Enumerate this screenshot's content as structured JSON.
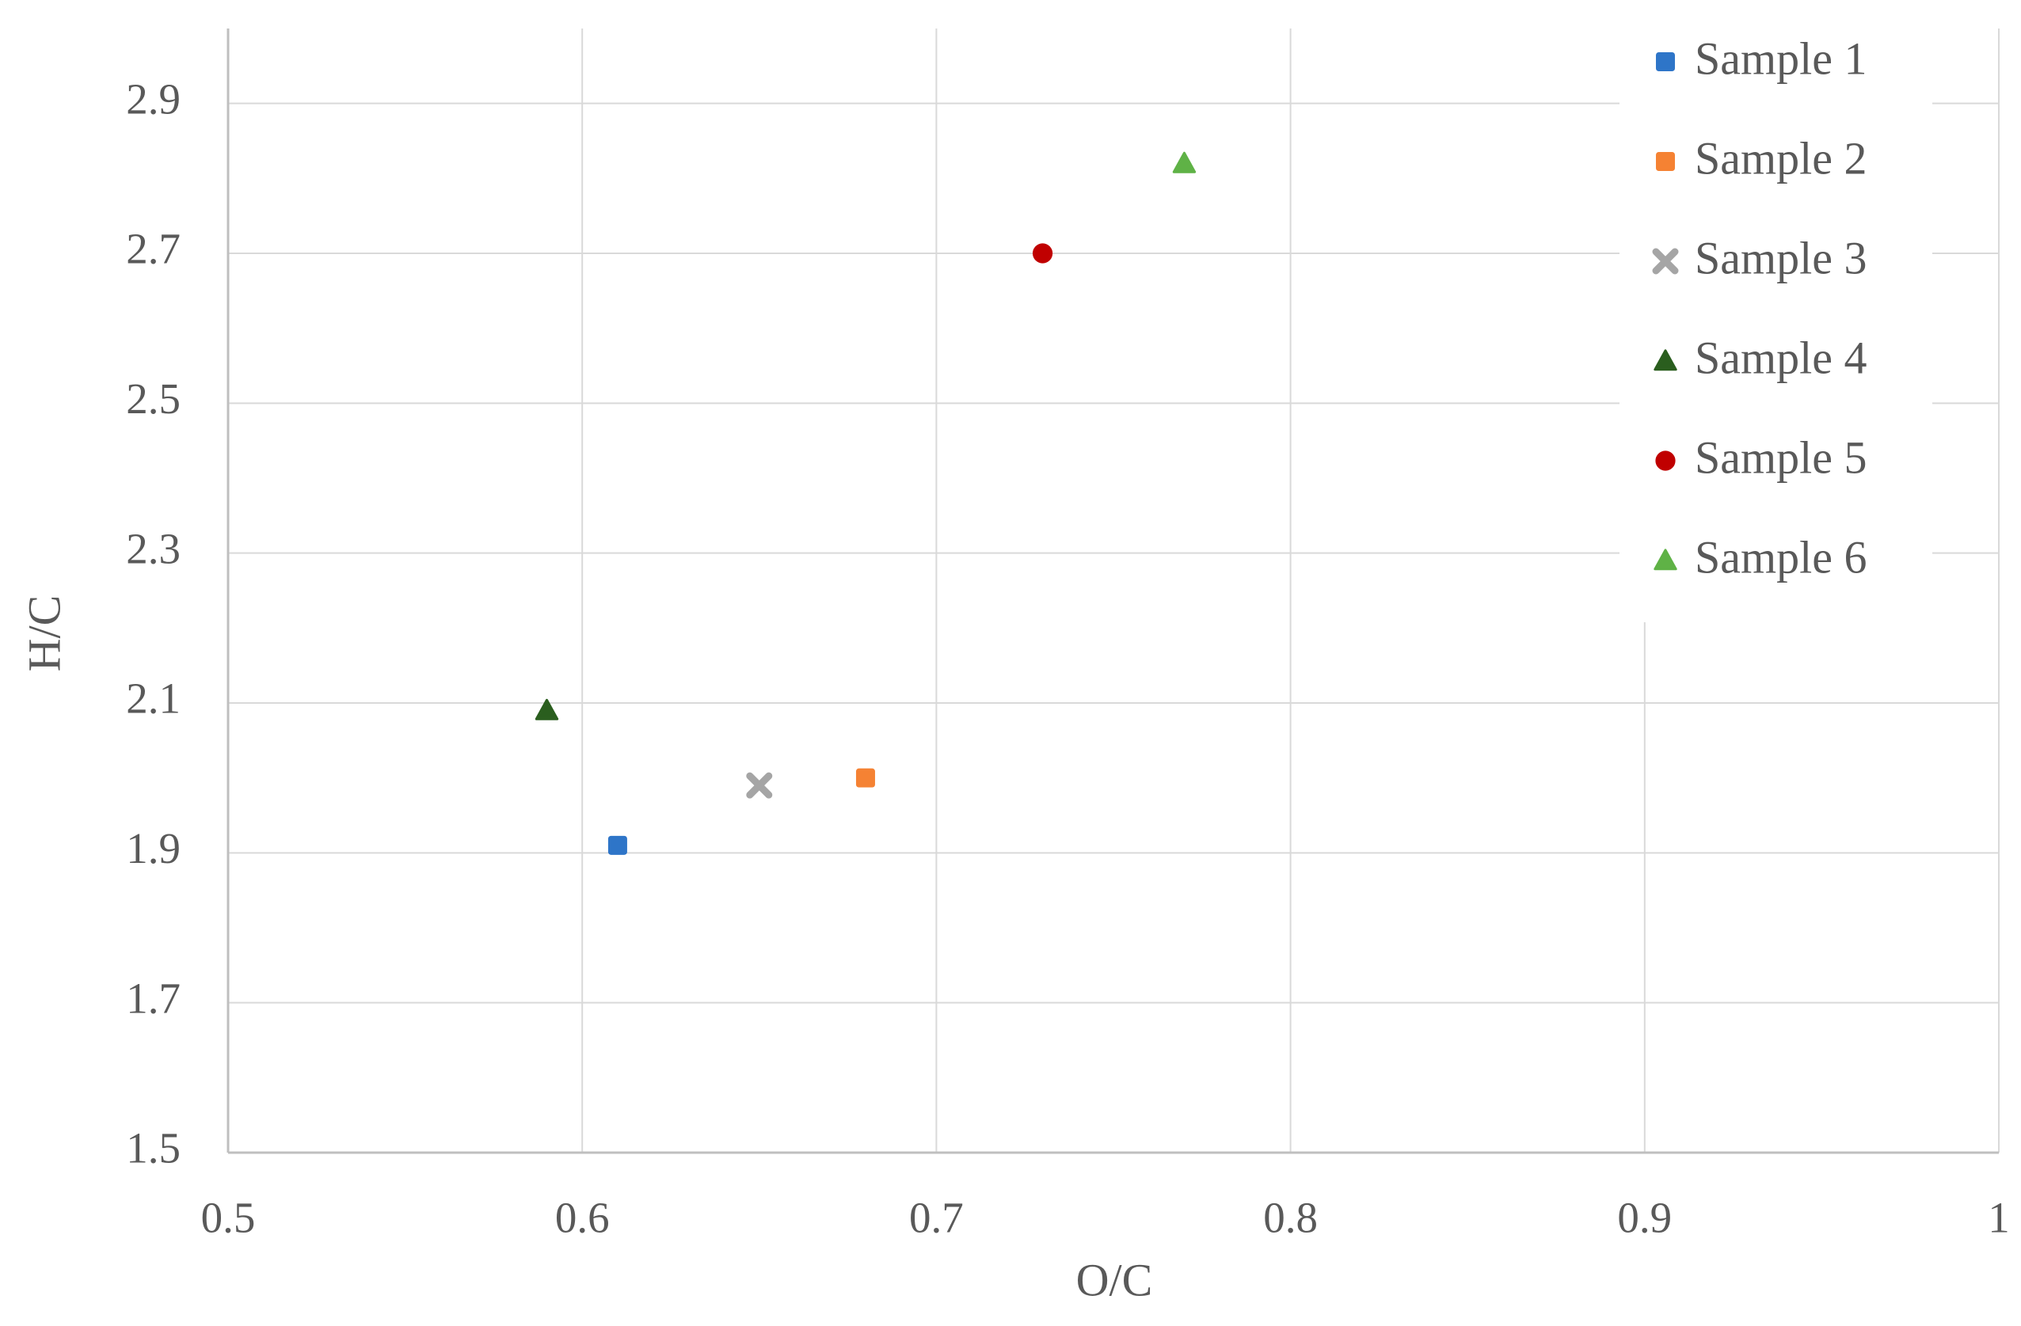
{
  "chart_data": {
    "type": "scatter",
    "x_label": "O/C",
    "y_label": "H/C",
    "xlim": [
      0.5,
      1
    ],
    "xticks": [
      0.5,
      0.6,
      0.7,
      0.8,
      0.9,
      1
    ],
    "ylim": [
      1.5,
      3.0
    ],
    "yticks": [
      1.5,
      1.7,
      1.9,
      2.1,
      2.3,
      2.5,
      2.7,
      2.9
    ],
    "grid": true,
    "legend": "top-right",
    "series": [
      {
        "name": "Sample 1",
        "color": "#2e75c8",
        "marker": "square",
        "x": [
          0.61
        ],
        "y": [
          1.91
        ]
      },
      {
        "name": "Sample 2",
        "color": "#f58233",
        "marker": "square",
        "x": [
          0.68
        ],
        "y": [
          2.0
        ]
      },
      {
        "name": "Sample 3",
        "color": "#a5a5a5",
        "marker": "cross",
        "x": [
          0.65
        ],
        "y": [
          1.99
        ]
      },
      {
        "name": "Sample 4",
        "color": "#2a5e1e",
        "marker": "triangle",
        "x": [
          0.59
        ],
        "y": [
          2.09
        ]
      },
      {
        "name": "Sample 5",
        "color": "#c00000",
        "marker": "circle",
        "x": [
          0.73
        ],
        "y": [
          2.7
        ]
      },
      {
        "name": "Sample 6",
        "color": "#5fb246",
        "marker": "triangle",
        "x": [
          0.77
        ],
        "y": [
          2.82
        ]
      }
    ]
  }
}
